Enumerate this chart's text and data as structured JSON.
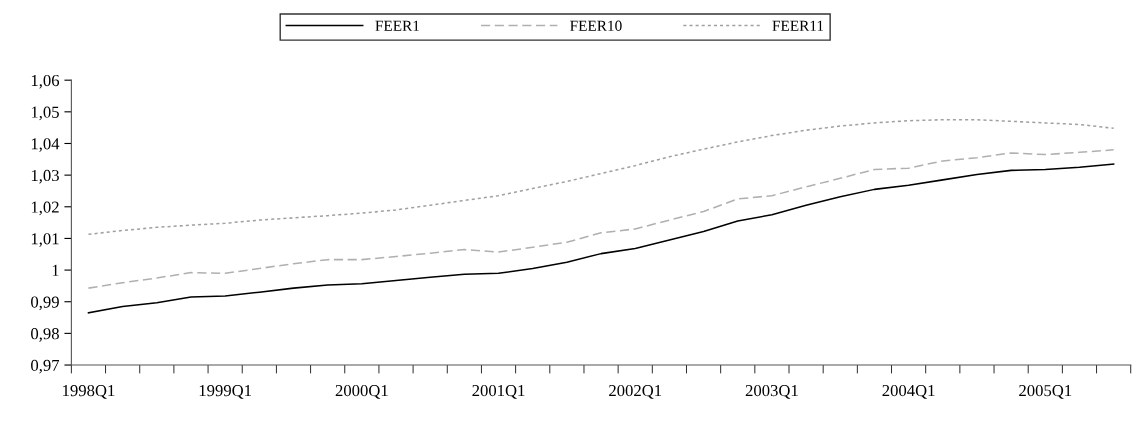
{
  "chart_data": {
    "type": "line",
    "categories": [
      "1998Q1",
      null,
      null,
      null,
      "1999Q1",
      null,
      null,
      null,
      "2000Q1",
      null,
      null,
      null,
      "2001Q1",
      null,
      null,
      null,
      "2002Q1",
      null,
      null,
      null,
      "2003Q1",
      null,
      null,
      null,
      "2004Q1",
      null,
      null,
      null,
      "2005Q1",
      null,
      null
    ],
    "series": [
      {
        "name": "FEER1",
        "color": "#000000",
        "line_style": "solid",
        "values": [
          0.9865,
          0.9885,
          0.9897,
          0.9915,
          0.9918,
          0.993,
          0.9943,
          0.9953,
          0.9957,
          0.9967,
          0.9977,
          0.9987,
          0.999,
          1.0005,
          1.0025,
          1.0052,
          1.0068,
          1.0095,
          1.0122,
          1.0155,
          1.0175,
          1.0205,
          1.0232,
          1.0255,
          1.0268,
          1.0285,
          1.0302,
          1.0315,
          1.0318,
          1.0325,
          1.0335
        ]
      },
      {
        "name": "FEER10",
        "color": "#b0b0b0",
        "line_style": "dashed",
        "values": [
          0.9943,
          0.996,
          0.9975,
          0.9992,
          0.999,
          1.0005,
          1.002,
          1.0033,
          1.0033,
          1.0043,
          1.0053,
          1.0065,
          1.0057,
          1.0072,
          1.0088,
          1.0118,
          1.013,
          1.0158,
          1.0185,
          1.0225,
          1.0235,
          1.0263,
          1.029,
          1.0318,
          1.0322,
          1.0345,
          1.0355,
          1.037,
          1.0365,
          1.0372,
          1.038
        ]
      },
      {
        "name": "FEER11",
        "color": "#a0a0a0",
        "line_style": "dotted",
        "values": [
          1.0113,
          1.0125,
          1.0135,
          1.0142,
          1.0148,
          1.0158,
          1.0165,
          1.0172,
          1.018,
          1.019,
          1.0205,
          1.022,
          1.0235,
          1.0258,
          1.028,
          1.0305,
          1.033,
          1.0358,
          1.0382,
          1.0405,
          1.0425,
          1.0442,
          1.0455,
          1.0465,
          1.0472,
          1.0475,
          1.0475,
          1.047,
          1.0465,
          1.046,
          1.0448
        ]
      }
    ],
    "ylim": [
      0.97,
      1.06
    ],
    "yticks": [
      {
        "value": 0.97,
        "label": "0,97"
      },
      {
        "value": 0.98,
        "label": "0,98"
      },
      {
        "value": 0.99,
        "label": "0,99"
      },
      {
        "value": 1,
        "label": "1"
      },
      {
        "value": 1.01,
        "label": "1,01"
      },
      {
        "value": 1.02,
        "label": "1,02"
      },
      {
        "value": 1.03,
        "label": "1,03"
      },
      {
        "value": 1.04,
        "label": "1,04"
      },
      {
        "value": 1.05,
        "label": "1,05"
      },
      {
        "value": 1.06,
        "label": "1,06"
      }
    ],
    "legend": "top",
    "grid": false
  }
}
